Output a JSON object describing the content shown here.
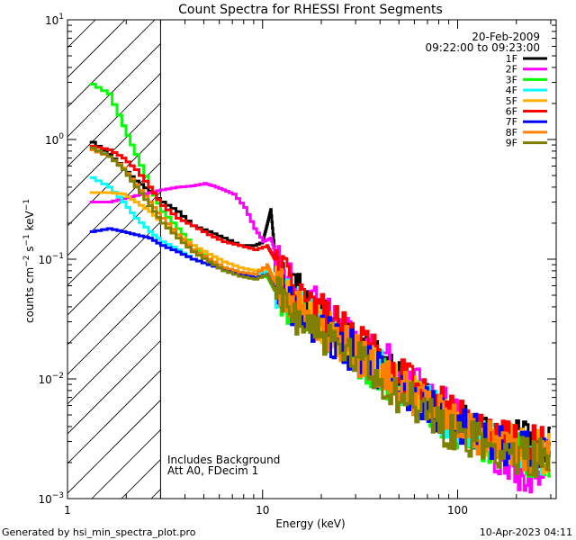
{
  "chart_data": {
    "type": "line",
    "title": "Count Spectra for RHESSI Front Segments",
    "xlabel": "Energy (keV)",
    "ylabel": "counts cm",
    "ylabel_parts": {
      "main": "counts cm",
      "sup1": "−2",
      "s": " s",
      "sup2": "−1",
      "kev": " keV",
      "sup3": "−1"
    },
    "xscale": "log",
    "yscale": "log",
    "xlim": [
      1,
      320
    ],
    "ylim": [
      0.001,
      10
    ],
    "x_ticks": [
      {
        "value": 1,
        "label": "1"
      },
      {
        "value": 10,
        "label": "10"
      },
      {
        "value": 100,
        "label": "100"
      }
    ],
    "y_ticks": [
      {
        "value": 10,
        "base": "10",
        "exp": "1"
      },
      {
        "value": 1,
        "base": "10",
        "exp": "0"
      },
      {
        "value": 0.1,
        "base": "10",
        "exp": "−1"
      },
      {
        "value": 0.01,
        "base": "10",
        "exp": "−2"
      },
      {
        "value": 0.001,
        "base": "10",
        "exp": "−3"
      }
    ],
    "date": "20-Feb-2009",
    "time_range": "09:22:00 to 09:23:00",
    "background_note": "Includes Background",
    "attenuator_note": "Att A0, FDecim 1",
    "hatched_region": [
      1,
      3
    ],
    "series": [
      {
        "name": "1F",
        "color": "#000000",
        "values": [
          [
            1.3,
            0.95
          ],
          [
            1.6,
            0.75
          ],
          [
            1.9,
            0.58
          ],
          [
            2.2,
            0.45
          ],
          [
            2.6,
            0.37
          ],
          [
            3.0,
            0.3
          ],
          [
            3.6,
            0.25
          ],
          [
            4.3,
            0.19
          ],
          [
            5.2,
            0.17
          ],
          [
            6.2,
            0.15
          ],
          [
            7.5,
            0.13
          ],
          [
            9.0,
            0.13
          ],
          [
            10.0,
            0.14
          ],
          [
            10.5,
            0.19
          ],
          [
            11.0,
            0.26
          ],
          [
            11.6,
            0.1
          ],
          [
            13,
            0.07
          ],
          [
            16,
            0.05
          ],
          [
            20,
            0.033
          ],
          [
            25,
            0.023
          ],
          [
            32,
            0.017
          ],
          [
            40,
            0.013
          ],
          [
            50,
            0.0095
          ],
          [
            65,
            0.0072
          ],
          [
            80,
            0.0056
          ],
          [
            100,
            0.0045
          ],
          [
            130,
            0.0036
          ],
          [
            160,
            0.0032
          ],
          [
            200,
            0.003
          ],
          [
            250,
            0.0028
          ],
          [
            300,
            0.0026
          ]
        ]
      },
      {
        "name": "2F",
        "color": "#ff00ff",
        "values": [
          [
            1.3,
            0.3
          ],
          [
            1.6,
            0.3
          ],
          [
            1.9,
            0.32
          ],
          [
            2.2,
            0.34
          ],
          [
            2.6,
            0.36
          ],
          [
            3.0,
            0.38
          ],
          [
            3.6,
            0.4
          ],
          [
            4.3,
            0.41
          ],
          [
            5.0,
            0.43
          ],
          [
            5.5,
            0.41
          ],
          [
            6.2,
            0.38
          ],
          [
            7.0,
            0.35
          ],
          [
            8.0,
            0.27
          ],
          [
            9.0,
            0.18
          ],
          [
            10.0,
            0.14
          ],
          [
            11.0,
            0.15
          ],
          [
            12,
            0.09
          ],
          [
            14,
            0.06
          ],
          [
            17,
            0.045
          ],
          [
            21,
            0.033
          ],
          [
            26,
            0.025
          ],
          [
            33,
            0.019
          ],
          [
            42,
            0.014
          ],
          [
            55,
            0.01
          ],
          [
            70,
            0.0072
          ],
          [
            90,
            0.0052
          ],
          [
            110,
            0.004
          ],
          [
            140,
            0.0028
          ],
          [
            170,
            0.0022
          ],
          [
            200,
            0.0018
          ],
          [
            240,
            0.0015
          ],
          [
            280,
            0.0012
          ]
        ]
      },
      {
        "name": "3F",
        "color": "#00ff00",
        "values": [
          [
            1.3,
            2.9
          ],
          [
            1.6,
            2.4
          ],
          [
            1.9,
            1.3
          ],
          [
            2.2,
            0.75
          ],
          [
            2.6,
            0.4
          ],
          [
            3.0,
            0.25
          ],
          [
            3.6,
            0.18
          ],
          [
            4.3,
            0.13
          ],
          [
            5.2,
            0.1
          ],
          [
            6.2,
            0.083
          ],
          [
            7.5,
            0.075
          ],
          [
            9.0,
            0.07
          ],
          [
            10.5,
            0.072
          ],
          [
            11.5,
            0.055
          ],
          [
            13,
            0.045
          ],
          [
            16,
            0.034
          ],
          [
            20,
            0.026
          ],
          [
            25,
            0.019
          ],
          [
            32,
            0.014
          ],
          [
            40,
            0.011
          ],
          [
            50,
            0.0082
          ],
          [
            65,
            0.0062
          ],
          [
            80,
            0.0048
          ],
          [
            100,
            0.0038
          ],
          [
            130,
            0.0031
          ],
          [
            160,
            0.0027
          ],
          [
            200,
            0.0024
          ],
          [
            250,
            0.0022
          ],
          [
            300,
            0.002
          ]
        ]
      },
      {
        "name": "4F",
        "color": "#00ffff",
        "values": [
          [
            1.3,
            0.48
          ],
          [
            1.6,
            0.4
          ],
          [
            1.9,
            0.3
          ],
          [
            2.2,
            0.22
          ],
          [
            2.6,
            0.17
          ],
          [
            3.0,
            0.14
          ],
          [
            3.6,
            0.12
          ],
          [
            4.3,
            0.1
          ],
          [
            5.2,
            0.09
          ],
          [
            6.2,
            0.085
          ],
          [
            7.5,
            0.078
          ],
          [
            9.0,
            0.075
          ],
          [
            10.5,
            0.08
          ],
          [
            11.5,
            0.06
          ],
          [
            13,
            0.05
          ],
          [
            16,
            0.037
          ],
          [
            20,
            0.028
          ],
          [
            25,
            0.021
          ],
          [
            32,
            0.015
          ],
          [
            40,
            0.012
          ],
          [
            50,
            0.009
          ],
          [
            65,
            0.0068
          ],
          [
            80,
            0.0052
          ],
          [
            100,
            0.0041
          ],
          [
            130,
            0.0033
          ],
          [
            160,
            0.0029
          ],
          [
            200,
            0.0026
          ],
          [
            250,
            0.0024
          ],
          [
            300,
            0.0022
          ]
        ]
      },
      {
        "name": "5F",
        "color": "#ffb000",
        "values": [
          [
            1.3,
            0.36
          ],
          [
            1.6,
            0.36
          ],
          [
            1.9,
            0.35
          ],
          [
            2.2,
            0.3
          ],
          [
            2.6,
            0.25
          ],
          [
            3.0,
            0.2
          ],
          [
            3.6,
            0.16
          ],
          [
            4.3,
            0.13
          ],
          [
            5.2,
            0.11
          ],
          [
            6.2,
            0.095
          ],
          [
            7.5,
            0.085
          ],
          [
            9.0,
            0.08
          ],
          [
            10.5,
            0.085
          ],
          [
            11.5,
            0.065
          ],
          [
            13,
            0.052
          ],
          [
            16,
            0.038
          ],
          [
            20,
            0.029
          ],
          [
            25,
            0.021
          ],
          [
            32,
            0.016
          ],
          [
            40,
            0.012
          ],
          [
            50,
            0.009
          ],
          [
            65,
            0.0069
          ],
          [
            80,
            0.0053
          ],
          [
            100,
            0.0042
          ],
          [
            130,
            0.0034
          ],
          [
            160,
            0.003
          ],
          [
            200,
            0.0027
          ],
          [
            250,
            0.0025
          ],
          [
            300,
            0.0023
          ]
        ]
      },
      {
        "name": "6F",
        "color": "#ff0000",
        "values": [
          [
            1.3,
            0.88
          ],
          [
            1.6,
            0.82
          ],
          [
            1.9,
            0.7
          ],
          [
            2.2,
            0.56
          ],
          [
            2.6,
            0.4
          ],
          [
            3.0,
            0.28
          ],
          [
            3.6,
            0.22
          ],
          [
            4.3,
            0.19
          ],
          [
            5.2,
            0.16
          ],
          [
            6.2,
            0.14
          ],
          [
            7.5,
            0.13
          ],
          [
            9.0,
            0.12
          ],
          [
            10.5,
            0.13
          ],
          [
            11.5,
            0.1
          ],
          [
            13,
            0.075
          ],
          [
            16,
            0.052
          ],
          [
            20,
            0.036
          ],
          [
            25,
            0.026
          ],
          [
            32,
            0.019
          ],
          [
            40,
            0.014
          ],
          [
            50,
            0.011
          ],
          [
            65,
            0.0082
          ],
          [
            80,
            0.0062
          ],
          [
            100,
            0.0049
          ],
          [
            130,
            0.0038
          ],
          [
            160,
            0.0033
          ],
          [
            200,
            0.003
          ],
          [
            250,
            0.0028
          ],
          [
            300,
            0.0026
          ]
        ]
      },
      {
        "name": "7F",
        "color": "#0000ff",
        "values": [
          [
            1.3,
            0.17
          ],
          [
            1.6,
            0.18
          ],
          [
            1.9,
            0.17
          ],
          [
            2.2,
            0.16
          ],
          [
            2.6,
            0.15
          ],
          [
            3.0,
            0.13
          ],
          [
            3.6,
            0.115
          ],
          [
            4.3,
            0.1
          ],
          [
            5.2,
            0.09
          ],
          [
            6.2,
            0.082
          ],
          [
            7.5,
            0.075
          ],
          [
            9.0,
            0.07
          ],
          [
            10.5,
            0.075
          ],
          [
            11.5,
            0.058
          ],
          [
            13,
            0.047
          ],
          [
            16,
            0.035
          ],
          [
            20,
            0.026
          ],
          [
            25,
            0.02
          ],
          [
            32,
            0.015
          ],
          [
            40,
            0.011
          ],
          [
            50,
            0.0086
          ],
          [
            65,
            0.0066
          ],
          [
            80,
            0.0051
          ],
          [
            100,
            0.004
          ],
          [
            130,
            0.0033
          ],
          [
            160,
            0.0029
          ],
          [
            200,
            0.0026
          ],
          [
            250,
            0.0024
          ],
          [
            300,
            0.0022
          ]
        ]
      },
      {
        "name": "8F",
        "color": "#ff7f00",
        "values": [
          [
            1.3,
            0.82
          ],
          [
            1.6,
            0.72
          ],
          [
            1.9,
            0.58
          ],
          [
            2.2,
            0.42
          ],
          [
            2.6,
            0.3
          ],
          [
            3.0,
            0.22
          ],
          [
            3.6,
            0.16
          ],
          [
            4.3,
            0.12
          ],
          [
            5.2,
            0.1
          ],
          [
            6.2,
            0.085
          ],
          [
            7.5,
            0.078
          ],
          [
            9.0,
            0.075
          ],
          [
            10.5,
            0.09
          ],
          [
            11.5,
            0.065
          ],
          [
            13,
            0.05
          ],
          [
            16,
            0.036
          ],
          [
            20,
            0.027
          ],
          [
            25,
            0.02
          ],
          [
            32,
            0.015
          ],
          [
            40,
            0.011
          ],
          [
            50,
            0.0085
          ],
          [
            65,
            0.0065
          ],
          [
            80,
            0.005
          ],
          [
            100,
            0.004
          ],
          [
            130,
            0.0032
          ],
          [
            160,
            0.0028
          ],
          [
            200,
            0.0025
          ],
          [
            250,
            0.0023
          ],
          [
            300,
            0.0021
          ]
        ]
      },
      {
        "name": "9F",
        "color": "#808000",
        "values": [
          [
            1.3,
            0.85
          ],
          [
            1.6,
            0.72
          ],
          [
            1.9,
            0.56
          ],
          [
            2.2,
            0.4
          ],
          [
            2.6,
            0.28
          ],
          [
            3.0,
            0.2
          ],
          [
            3.6,
            0.15
          ],
          [
            4.3,
            0.115
          ],
          [
            5.2,
            0.095
          ],
          [
            6.2,
            0.08
          ],
          [
            7.5,
            0.072
          ],
          [
            9.0,
            0.068
          ],
          [
            10.5,
            0.075
          ],
          [
            11.5,
            0.055
          ],
          [
            13,
            0.042
          ],
          [
            16,
            0.031
          ],
          [
            20,
            0.023
          ],
          [
            25,
            0.017
          ],
          [
            32,
            0.013
          ],
          [
            40,
            0.0095
          ],
          [
            50,
            0.0072
          ],
          [
            65,
            0.0055
          ],
          [
            80,
            0.0043
          ],
          [
            100,
            0.0035
          ],
          [
            130,
            0.0029
          ],
          [
            160,
            0.0026
          ],
          [
            200,
            0.0024
          ],
          [
            250,
            0.0022
          ],
          [
            300,
            0.002
          ]
        ]
      }
    ]
  },
  "footer": {
    "generated_by": "Generated by hsi_min_spectra_plot.pro",
    "timestamp": "10-Apr-2023 04:11"
  }
}
